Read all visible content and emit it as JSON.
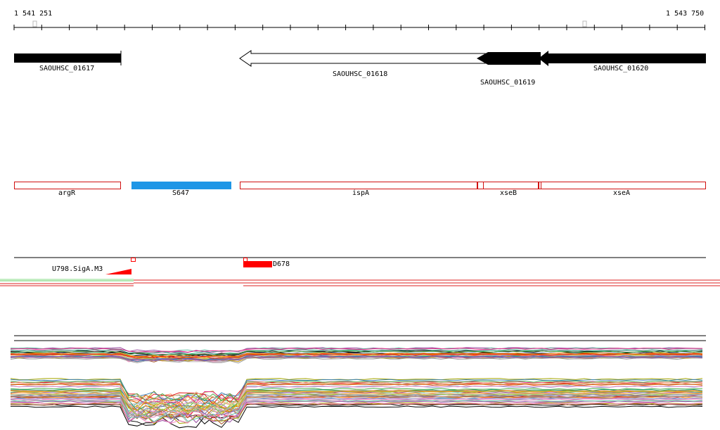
{
  "ruler": {
    "start": "1 541 251",
    "end": "1 543 750"
  },
  "genes": [
    {
      "id": "SAOUHSC_01617"
    },
    {
      "id": "SAOUHSC_01618"
    },
    {
      "id": "SAOUHSC_01619"
    },
    {
      "id": "SAOUHSC_01620"
    }
  ],
  "annotations": [
    {
      "name": "argR"
    },
    {
      "name": "S647"
    },
    {
      "name": "ispA"
    },
    {
      "name": "xseB"
    },
    {
      "name": "xseA"
    }
  ],
  "features": [
    {
      "name": "U798.SigA.M3"
    },
    {
      "name": "D678"
    }
  ],
  "colors": {
    "gene": "#000000",
    "annotation_outline": "#d01010",
    "srna": "#1e96e6",
    "feature_red": "#ff0000",
    "track_red": "#dd2222",
    "track_green": "#88dd88"
  }
}
